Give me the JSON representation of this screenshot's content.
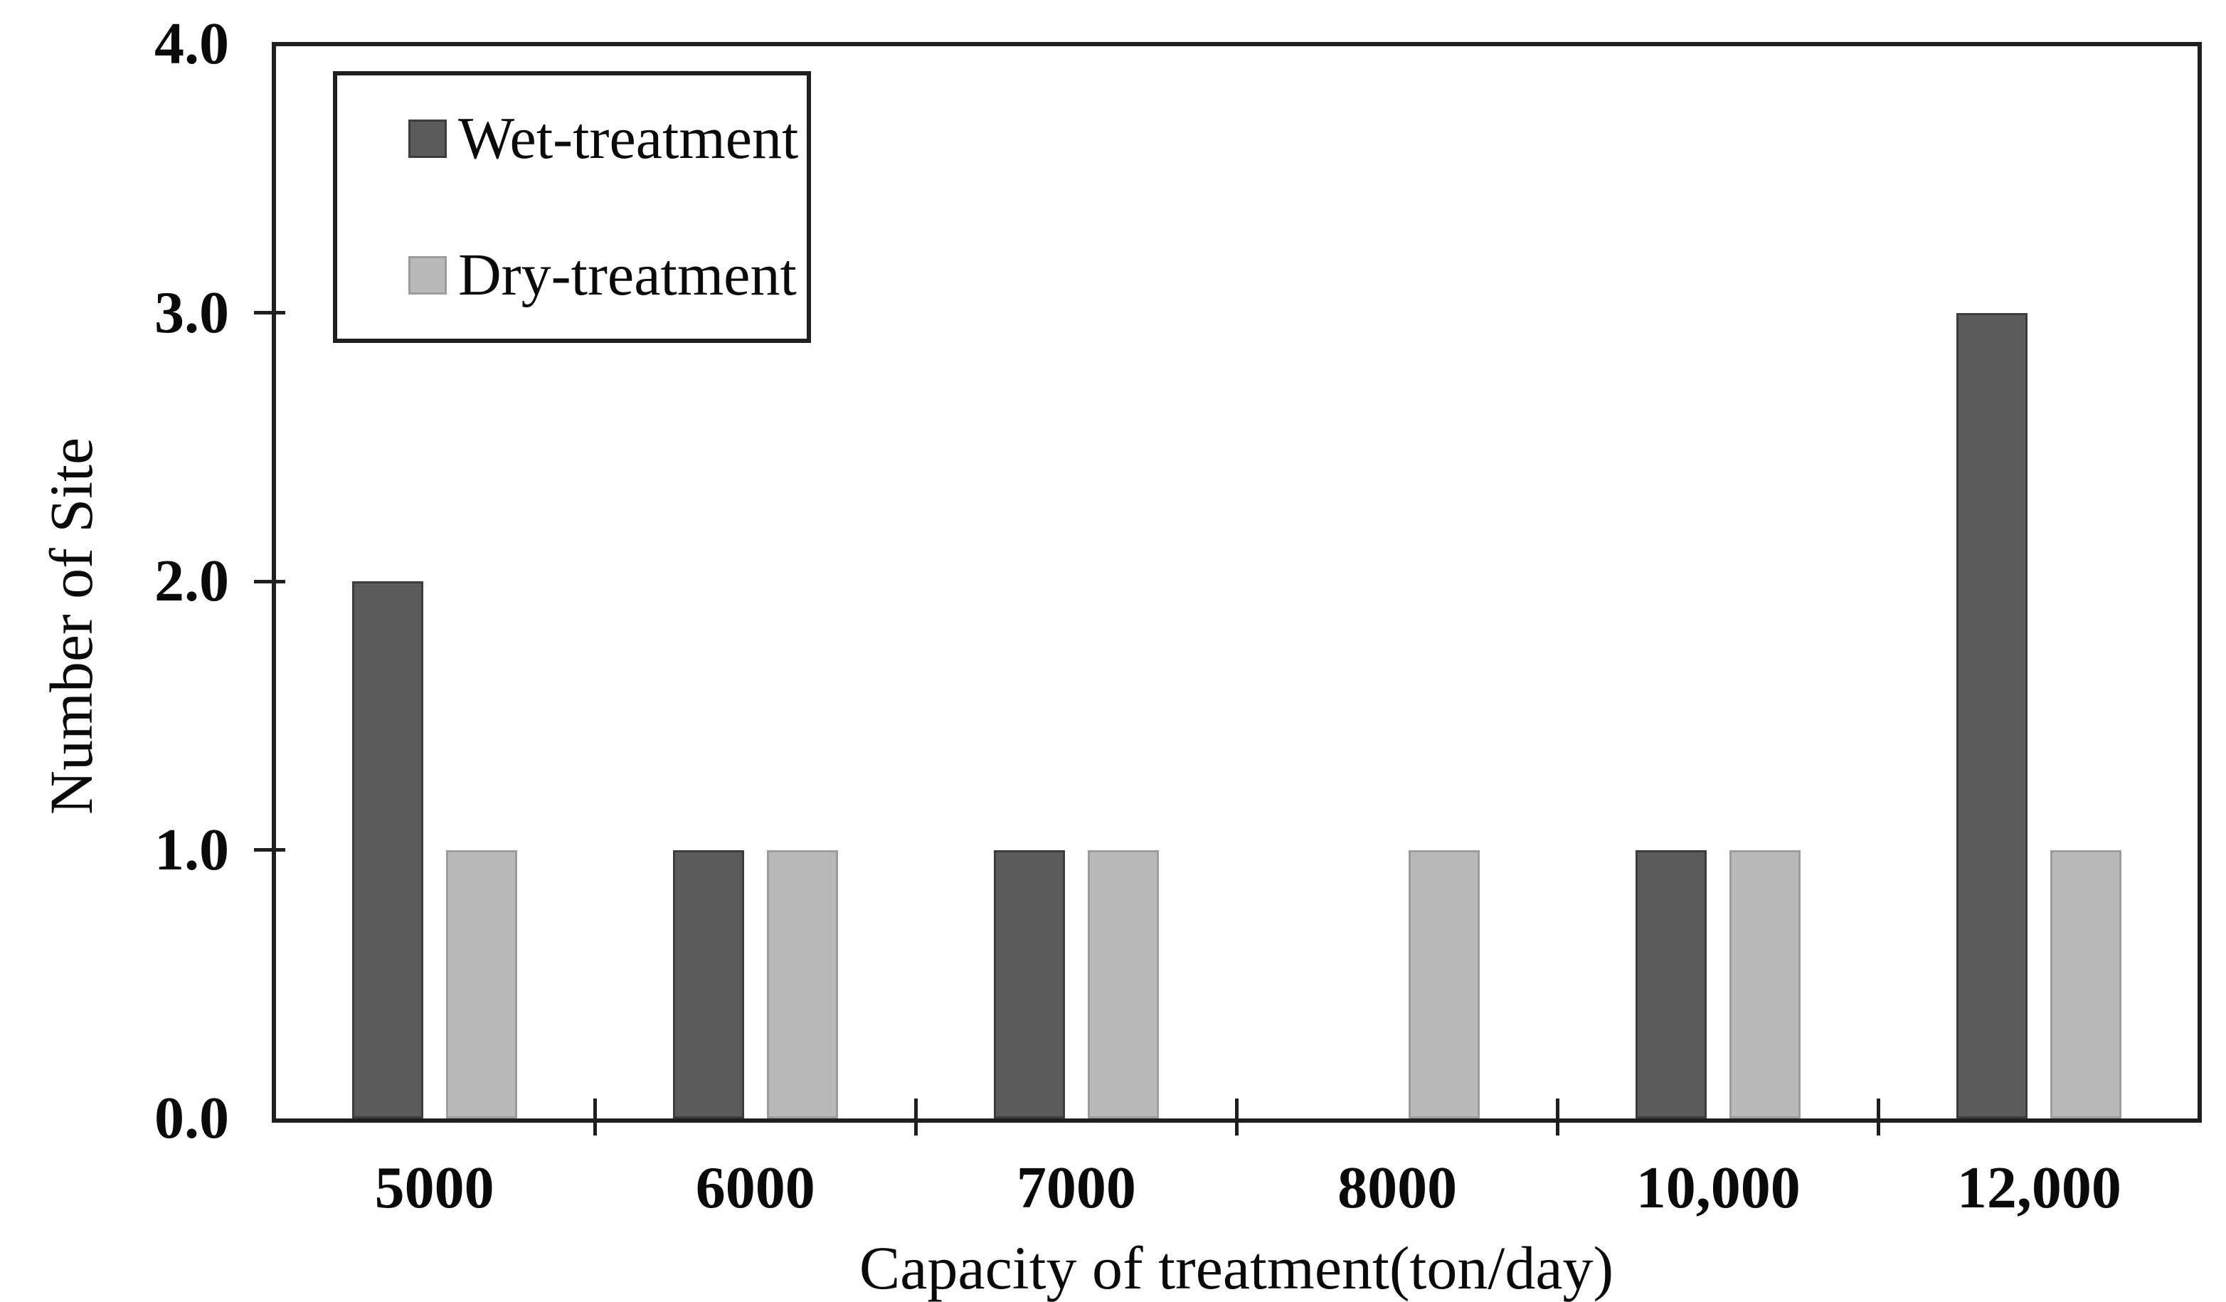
{
  "chart_data": {
    "type": "bar",
    "title": "",
    "categories": [
      "5000",
      "6000",
      "7000",
      "8000",
      "10,000",
      "12,000"
    ],
    "series": [
      {
        "name": "Wet-treatment",
        "values": [
          2,
          1,
          1,
          0,
          1,
          3
        ],
        "fill": "#5b5b5b",
        "stroke": "#3c3c3c"
      },
      {
        "name": "Dry-treatment",
        "values": [
          1,
          1,
          1,
          1,
          1,
          1
        ],
        "fill": "#b9b9b9",
        "stroke": "#9c9c9c"
      }
    ],
    "xlabel": "Capacity of treatment(ton/day)",
    "ylabel": "Number of Site",
    "ylim": [
      0,
      4
    ],
    "yticks": [
      {
        "value": 0,
        "label": "0.0"
      },
      {
        "value": 1,
        "label": "1.0"
      },
      {
        "value": 2,
        "label": "2.0"
      },
      {
        "value": 3,
        "label": "3.0"
      },
      {
        "value": 4,
        "label": "4.0"
      }
    ],
    "grid": false,
    "legend_position": "top-left-inside",
    "colors": {
      "axis": "#1f1f1f",
      "text": "#0a0a0a",
      "background": "#ffffff"
    }
  }
}
